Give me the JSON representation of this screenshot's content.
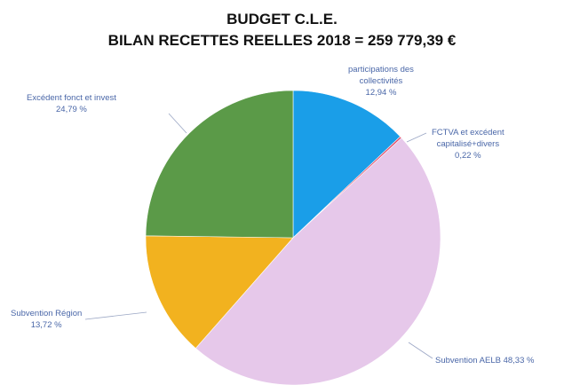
{
  "chart_data": {
    "type": "pie",
    "title": "BUDGET C.L.E.",
    "subtitle": "BILAN RECETTES REELLES 2018 = 259 779,39 €",
    "slices": [
      {
        "label_line1": "participations des",
        "label_line2": "collectivités",
        "value_text": "12,94 %",
        "value": 12.94,
        "color": "#1a9ee8"
      },
      {
        "label_line1": "FCTVA et excédent",
        "label_line2": "capitalisé+divers",
        "value_text": "0,22 %",
        "value": 0.22,
        "color": "#e0506e"
      },
      {
        "label_line1": "Subvention AELB",
        "label_line2": "",
        "value_text": "48,33 %",
        "value": 48.33,
        "color": "#e6c8ea"
      },
      {
        "label_line1": "Subvention Région",
        "label_line2": "",
        "value_text": "13,72 %",
        "value": 13.72,
        "color": "#f2b21f"
      },
      {
        "label_line1": "Excédent fonct et invest",
        "label_line2": "",
        "value_text": "24,79 %",
        "value": 24.79,
        "color": "#5b9a48"
      }
    ]
  }
}
